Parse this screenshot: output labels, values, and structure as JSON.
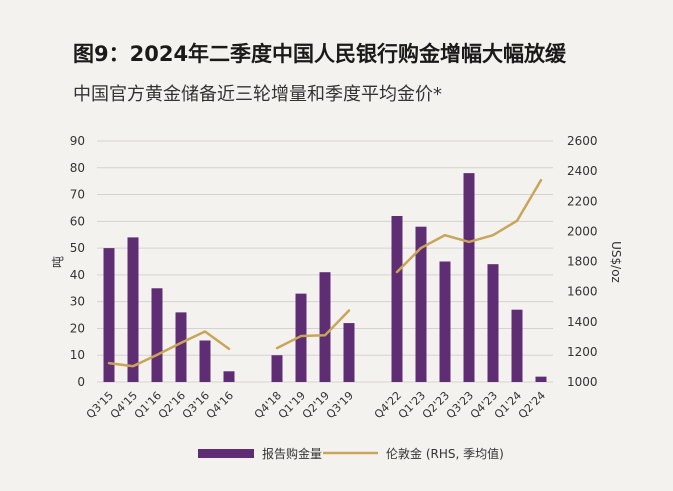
{
  "header": {
    "title": "图9：2024年二季度中国人民银行购金增幅大幅放缓",
    "subtitle": "中国官方黄金储备近三轮增量和季度平均金价*"
  },
  "colors": {
    "bar": "#5f2d73",
    "line": "#c9a55a",
    "grid": "#d6d3cf"
  },
  "chart_data": {
    "type": "bar",
    "categories": [
      "Q3'15",
      "Q4'15",
      "Q1'16",
      "Q2'16",
      "Q3'16",
      "Q4'16",
      "",
      "Q4'18",
      "Q1'19",
      "Q2'19",
      "Q3'19",
      "",
      "Q4'22",
      "Q1'23",
      "Q2'23",
      "Q3'23",
      "Q4'23",
      "Q1'24",
      "Q2'24"
    ],
    "series": [
      {
        "name": "报告购金量",
        "type": "bar",
        "axis": "left",
        "values": [
          50,
          54,
          35,
          26,
          15.5,
          4,
          null,
          10,
          33,
          41,
          22,
          null,
          62,
          58,
          45,
          78,
          44,
          27,
          2
        ]
      },
      {
        "name": "伦敦金 (RHS, 季均值)",
        "type": "line",
        "axis": "right",
        "values": [
          1125,
          1105,
          1180,
          1260,
          1335,
          1220,
          null,
          1225,
          1305,
          1310,
          1475,
          null,
          1730,
          1890,
          1975,
          1930,
          1975,
          2070,
          2340
        ]
      }
    ],
    "ylabel": "吨",
    "y2label": "US$/oz",
    "ylim": [
      0,
      90
    ],
    "y2lim": [
      1000,
      2600
    ],
    "yticks": [
      0,
      10,
      20,
      30,
      40,
      50,
      60,
      70,
      80,
      90
    ],
    "y2ticks": [
      1000,
      1200,
      1400,
      1600,
      1800,
      2000,
      2200,
      2400,
      2600
    ],
    "grid": true,
    "legend_position": "bottom"
  }
}
